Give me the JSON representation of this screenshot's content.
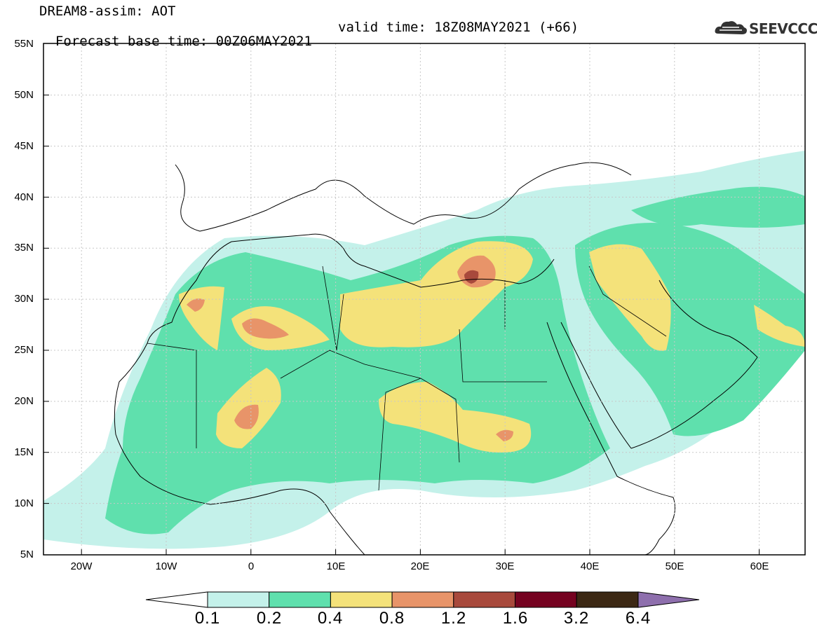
{
  "title": {
    "line1": "DREAM8-assim: AOT",
    "base_time": "Forecast base time: 00Z06MAY2021",
    "valid_time": "valid time: 18Z08MAY2021 (+66)"
  },
  "logo": {
    "text": "SEEVCCC",
    "icon": "cloud-icon"
  },
  "map": {
    "lat_labels": [
      "55N",
      "50N",
      "45N",
      "40N",
      "35N",
      "30N",
      "25N",
      "20N",
      "15N",
      "10N",
      "5N"
    ],
    "lon_labels": [
      "20W",
      "10W",
      "0",
      "10E",
      "20E",
      "30E",
      "40E",
      "50E",
      "60E"
    ],
    "lat_range": [
      5,
      55
    ],
    "lon_range": [
      -25,
      65
    ],
    "grid": true
  },
  "colorbar": {
    "labels": [
      "0.1",
      "0.2",
      "0.4",
      "0.8",
      "1.2",
      "1.6",
      "3.2",
      "6.4"
    ],
    "colors": [
      "#ffffff",
      "#c4f1ea",
      "#5fe0ad",
      "#f4e27a",
      "#e89469",
      "#a8493c",
      "#750220",
      "#3c2814",
      "#8e6fad"
    ]
  }
}
